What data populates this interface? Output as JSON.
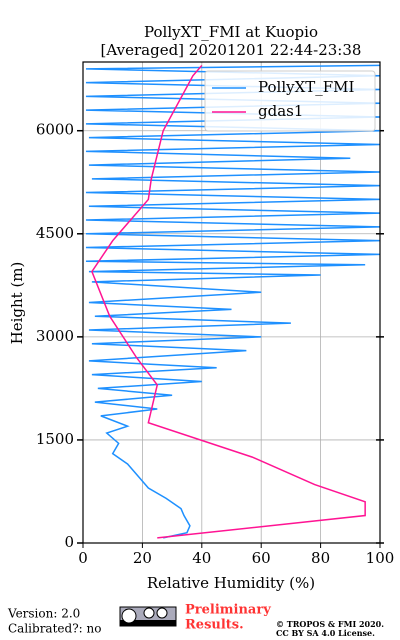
{
  "chart_data": {
    "type": "line",
    "title": "PollyXT_FMI at Kuopio",
    "subtitle": "[Averaged] 20201201 22:44-23:38",
    "x_label": "Relative Humidity (%)",
    "y_label": "Height (m)",
    "xlim": [
      0,
      100
    ],
    "xticks": [
      0,
      20,
      40,
      60,
      80,
      100
    ],
    "ylim": [
      0,
      7000
    ],
    "yticks": [
      0,
      1500,
      3000,
      4500,
      6000
    ],
    "grid": true,
    "legend": "upper right",
    "series": [
      {
        "name": "PollyXT_FMI",
        "color": "#1e90ff",
        "x": [
          27,
          35,
          36,
          34,
          33,
          28,
          22,
          20,
          18,
          15,
          10,
          12,
          8,
          15,
          6,
          25,
          4,
          30,
          5,
          40,
          3,
          45,
          2,
          55,
          3,
          60,
          2,
          70,
          4,
          50,
          2,
          60,
          3,
          80,
          2,
          95,
          1,
          100,
          1,
          100,
          1,
          100,
          1,
          100,
          2,
          100,
          1,
          100,
          3,
          100,
          2,
          90,
          1,
          100,
          2,
          100,
          1,
          100,
          1,
          100,
          1,
          100,
          1,
          100,
          1,
          100
        ],
        "y": [
          75,
          150,
          250,
          400,
          500,
          650,
          800,
          900,
          1000,
          1150,
          1300,
          1450,
          1600,
          1700,
          1850,
          1950,
          2050,
          2150,
          2250,
          2350,
          2450,
          2550,
          2650,
          2800,
          2900,
          3000,
          3100,
          3200,
          3300,
          3400,
          3500,
          3650,
          3800,
          3900,
          3950,
          4050,
          4100,
          4200,
          4300,
          4400,
          4500,
          4600,
          4700,
          4800,
          4900,
          5000,
          5100,
          5200,
          5300,
          5400,
          5500,
          5600,
          5700,
          5800,
          5900,
          6000,
          6100,
          6200,
          6300,
          6400,
          6500,
          6600,
          6700,
          6800,
          6900,
          6950
        ]
      },
      {
        "name": "gdas1",
        "color": "#ff1493",
        "x": [
          25,
          95,
          95,
          78,
          57,
          22,
          25,
          18,
          9,
          3,
          10,
          22,
          23,
          27,
          37,
          40
        ],
        "y": [
          75,
          400,
          600,
          850,
          1250,
          1750,
          2300,
          2700,
          3300,
          3950,
          4400,
          5000,
          5300,
          6000,
          6800,
          6950
        ]
      }
    ],
    "footer": {
      "version": "Version: 2.0",
      "calibrated": "Calibrated?: no",
      "preliminary": [
        "Preliminary",
        "Results."
      ],
      "copyright": [
        "© TROPOS & FMI 2020.",
        "CC BY SA 4.0 License."
      ]
    }
  }
}
